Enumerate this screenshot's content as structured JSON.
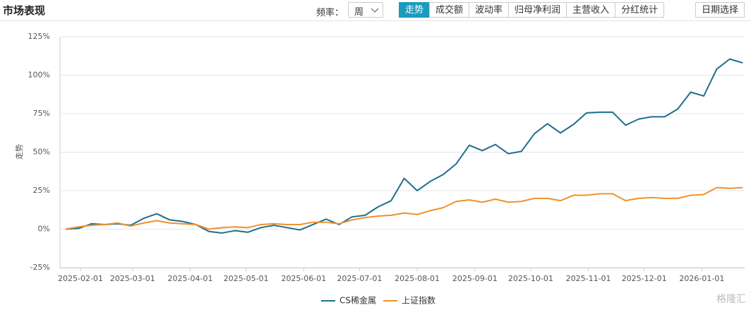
{
  "header": {
    "title": "市场表现",
    "frequency_label": "频率：",
    "frequency_value": "周",
    "tabs": [
      "走势",
      "成交额",
      "波动率",
      "归母净利润",
      "主营收入",
      "分红统计"
    ],
    "date_button": "日期选择"
  },
  "chart_data": {
    "type": "line",
    "y_label": "走势",
    "x": [
      "2025-01-24",
      "2025-01-31",
      "2025-02-07",
      "2025-02-14",
      "2025-02-21",
      "2025-02-28",
      "2025-03-07",
      "2025-03-14",
      "2025-03-21",
      "2025-03-28",
      "2025-04-04",
      "2025-04-11",
      "2025-04-18",
      "2025-04-25",
      "2025-05-02",
      "2025-05-09",
      "2025-05-16",
      "2025-05-23",
      "2025-05-30",
      "2025-06-06",
      "2025-06-13",
      "2025-06-20",
      "2025-06-27",
      "2025-07-04",
      "2025-07-11",
      "2025-07-18",
      "2025-07-25",
      "2025-08-01",
      "2025-08-08",
      "2025-08-15",
      "2025-08-22",
      "2025-08-29",
      "2025-09-05",
      "2025-09-12",
      "2025-09-19",
      "2025-09-26",
      "2025-10-03",
      "2025-10-10",
      "2025-10-17",
      "2025-10-24",
      "2025-10-31",
      "2025-11-07",
      "2025-11-14",
      "2025-11-21",
      "2025-11-28",
      "2025-12-05",
      "2025-12-12",
      "2025-12-19",
      "2025-12-26",
      "2026-01-02",
      "2026-01-09",
      "2026-01-16",
      "2026-01-23"
    ],
    "series": [
      {
        "name": "CS稀金属",
        "color": "#1f6f8b",
        "values": [
          0,
          0.5,
          3.5,
          3,
          3.5,
          2.5,
          7,
          10,
          6,
          5,
          3,
          -1.5,
          -2.5,
          -1,
          -2,
          1,
          2.5,
          1,
          -0.5,
          3,
          6.5,
          3,
          8,
          9,
          14.5,
          18.5,
          33,
          25,
          31,
          35.5,
          42.5,
          54.5,
          51,
          55,
          49,
          50.5,
          62,
          68.5,
          62.5,
          68,
          75.5,
          76,
          76,
          67.5,
          71.5,
          73,
          73,
          78,
          89,
          86.5,
          104,
          110.5,
          108
        ]
      },
      {
        "name": "上证指数",
        "color": "#f0912c",
        "values": [
          0,
          1.5,
          2.5,
          3,
          4,
          2,
          4,
          5.5,
          4,
          3.5,
          3,
          0,
          1,
          1.5,
          1,
          3,
          3.5,
          3,
          3,
          4.5,
          4.5,
          3.5,
          6,
          7.5,
          8.5,
          9,
          10.5,
          9.5,
          12,
          14,
          18,
          19,
          17.5,
          19.5,
          17.5,
          18,
          20,
          20,
          18.5,
          22,
          22,
          23,
          23,
          18.5,
          20,
          20.5,
          20,
          20,
          22,
          22.5,
          27,
          26.5,
          27
        ]
      }
    ],
    "xlim": [
      "2025-01-21",
      "2026-01-24"
    ],
    "xticks": [
      "2025-02-01",
      "2025-03-01",
      "2025-04-01",
      "2025-05-01",
      "2025-06-01",
      "2025-07-01",
      "2025-08-01",
      "2025-09-01",
      "2025-10-01",
      "2025-11-01",
      "2025-12-01",
      "2026-01-01"
    ],
    "ylim": [
      -25,
      125
    ],
    "yticks": [
      {
        "value": -25,
        "label": "-25%"
      },
      {
        "value": 0,
        "label": "0%"
      },
      {
        "value": 25,
        "label": "25%"
      },
      {
        "value": 50,
        "label": "50%"
      },
      {
        "value": 75,
        "label": "75%"
      },
      {
        "value": 100,
        "label": "100%"
      },
      {
        "value": 125,
        "label": "125%"
      }
    ],
    "grid": true,
    "legend": "bottom"
  },
  "watermark": "格隆汇"
}
